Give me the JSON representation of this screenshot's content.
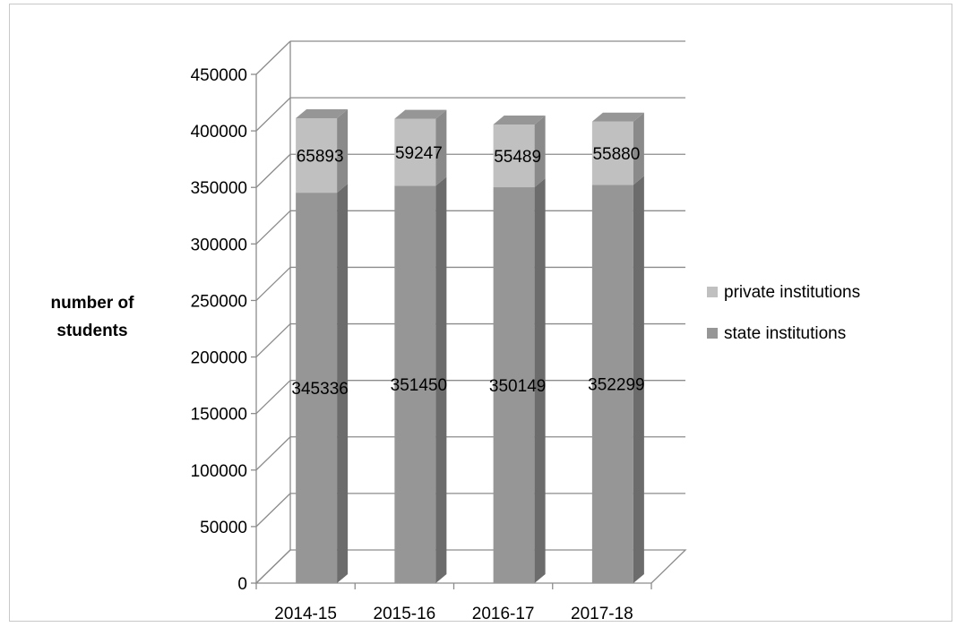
{
  "chart_data": {
    "type": "bar",
    "stacked": true,
    "style": "3d",
    "categories": [
      "2014-15",
      "2015-16",
      "2016-17",
      "2017-18"
    ],
    "series": [
      {
        "name": "state institutions",
        "values": [
          345336,
          351450,
          350149,
          352299
        ],
        "color": "#969696"
      },
      {
        "name": "private institutions",
        "values": [
          65893,
          59247,
          55489,
          55880
        ],
        "color": "#c0c0c0"
      }
    ],
    "ylabel": "number of students",
    "ylim": [
      0,
      450000
    ],
    "yticks": [
      0,
      50000,
      100000,
      150000,
      200000,
      250000,
      300000,
      350000,
      400000,
      450000
    ],
    "grid": true,
    "legend_position": "right",
    "legend_order": [
      "private institutions",
      "state institutions"
    ]
  }
}
